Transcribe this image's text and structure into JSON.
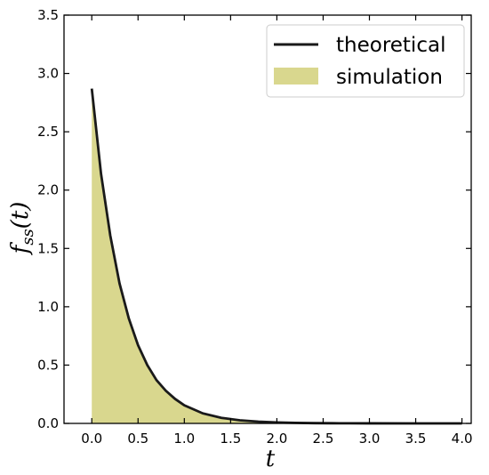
{
  "chart_data": {
    "type": "area",
    "xlabel": "t",
    "ylabel": {
      "main": "f",
      "sub": "ss",
      "arg": "(t)"
    },
    "xlim": [
      -0.3,
      4.1
    ],
    "ylim": [
      0,
      3.5
    ],
    "xticks": [
      "0.0",
      "0.5",
      "1.0",
      "1.5",
      "2.0",
      "2.5",
      "3.0",
      "3.5",
      "4.0"
    ],
    "yticks": [
      "0.0",
      "0.5",
      "1.0",
      "1.5",
      "2.0",
      "2.5",
      "3.0",
      "3.5"
    ],
    "legend_position": "top-right",
    "grid": false,
    "series": [
      {
        "name": "theoretical",
        "kind": "line",
        "color": "#1a1a1a",
        "x": [
          0,
          0.1,
          0.2,
          0.3,
          0.4,
          0.5,
          0.6,
          0.7,
          0.8,
          0.9,
          1.0,
          1.2,
          1.4,
          1.6,
          1.8,
          2.0,
          2.2,
          2.4,
          2.6,
          2.8,
          3.0,
          3.5,
          4.0
        ],
        "y": [
          2.87,
          2.14,
          1.61,
          1.2,
          0.9,
          0.67,
          0.5,
          0.37,
          0.28,
          0.21,
          0.155,
          0.086,
          0.048,
          0.027,
          0.015,
          0.008,
          0.0045,
          0.0025,
          0.0014,
          0.0008,
          0.0004,
          0.0001,
          0.0
        ]
      },
      {
        "name": "simulation",
        "kind": "area",
        "color": "#d9d78e",
        "x": [
          0,
          0.1,
          0.2,
          0.3,
          0.4,
          0.5,
          0.6,
          0.7,
          0.8,
          0.9,
          1.0,
          1.2,
          1.4,
          1.6,
          1.8,
          2.0,
          2.2,
          2.4,
          2.6,
          2.8,
          3.0,
          3.5,
          4.0
        ],
        "y": [
          2.87,
          2.14,
          1.61,
          1.2,
          0.9,
          0.67,
          0.5,
          0.37,
          0.28,
          0.21,
          0.155,
          0.086,
          0.048,
          0.027,
          0.015,
          0.008,
          0.0045,
          0.0025,
          0.0014,
          0.0008,
          0.0004,
          0.0001,
          0.0
        ]
      }
    ]
  }
}
